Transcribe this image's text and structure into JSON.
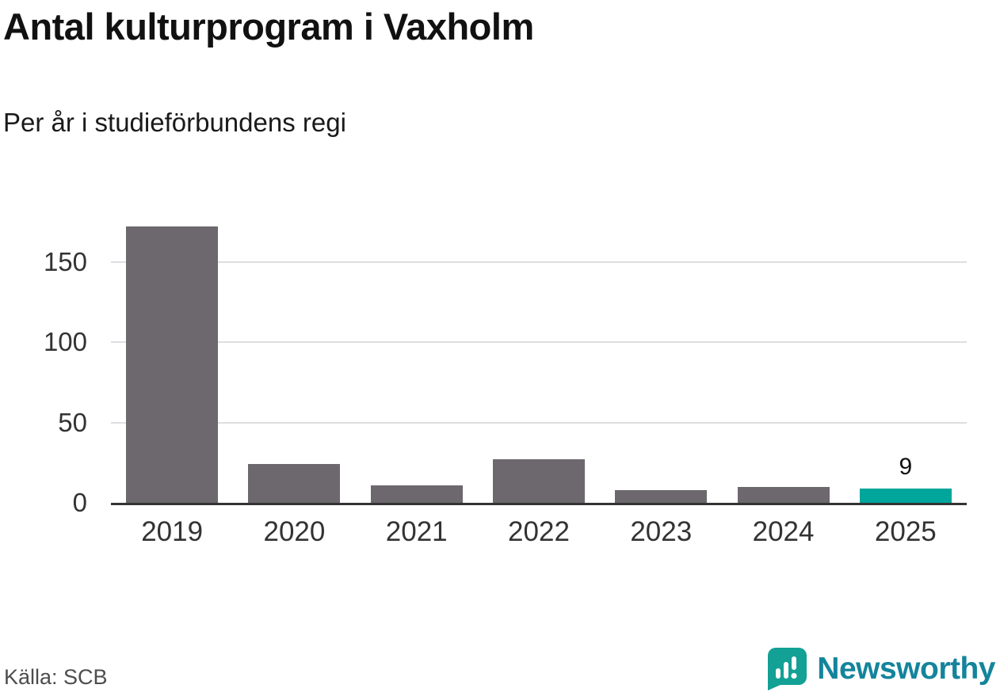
{
  "title": "Antal kulturprogram i Vaxholm",
  "subtitle": "Per år i studieförbundens regi",
  "source": "Källa: SCB",
  "logo": {
    "text": "Newsworthy"
  },
  "colors": {
    "bar_default": "#6c686d",
    "bar_highlight": "#00a59b",
    "gridline": "#dedde0",
    "axis_line": "#333333",
    "tick_text": "#333333",
    "logo_icon": "#13a095",
    "logo_text": "#14849c"
  },
  "chart_data": {
    "type": "bar",
    "title": "Antal kulturprogram i Vaxholm",
    "subtitle": "Per år i studieförbundens regi",
    "categories": [
      "2019",
      "2020",
      "2021",
      "2022",
      "2023",
      "2024",
      "2025"
    ],
    "values": [
      172,
      24,
      11,
      27,
      8,
      10,
      9
    ],
    "highlight_index": 6,
    "annotations": [
      {
        "index": 6,
        "text": "9"
      }
    ],
    "xlabel": "",
    "ylabel": "",
    "yticks": [
      0,
      50,
      100,
      150
    ],
    "ylim": [
      0,
      180
    ],
    "grid": true,
    "legend": false
  }
}
